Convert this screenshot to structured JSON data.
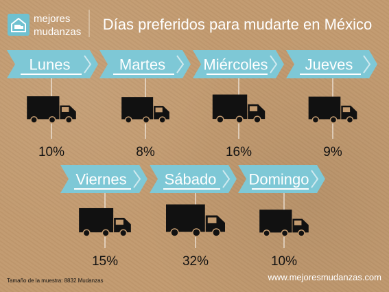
{
  "brand": {
    "line1": "mejores",
    "line2": "mudanzas",
    "logo_icon": "truck-house-icon"
  },
  "title": "Días preferidos para mudarte en México",
  "footer": {
    "sample_note": "Tamaño de la muestra: 8832 Mudanzas",
    "website": "www.mejoresmudanzas.com"
  },
  "colors": {
    "background": "#c29a6f",
    "banner": "#7ec8d6",
    "banner_edge": "#cfe9ef",
    "truck": "#111111",
    "text": "#111111",
    "white": "#ffffff"
  },
  "chart_data": {
    "type": "bar",
    "title": "Días preferidos para mudarte en México",
    "categories": [
      "Lunes",
      "Martes",
      "Miércoles",
      "Jueves",
      "Viernes",
      "Sábado",
      "Domingo"
    ],
    "values": [
      10,
      8,
      16,
      9,
      15,
      32,
      10
    ],
    "labels": [
      "10%",
      "8%",
      "16%",
      "9%",
      "15%",
      "32%",
      "10%"
    ],
    "mark": "truck-icon scaled by value"
  }
}
